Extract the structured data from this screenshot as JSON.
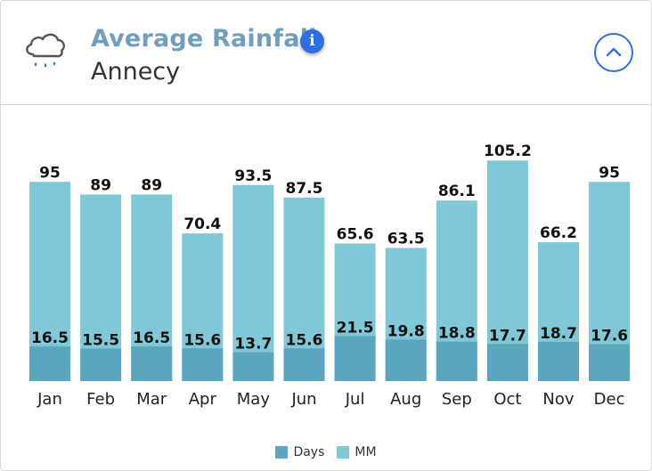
{
  "header": {
    "title": "Average Rainfall",
    "subtitle": "Annecy",
    "weather_icon": "rain-cloud-icon",
    "info_icon": "info-icon",
    "info_label": "i",
    "collapse_icon": "chevron-up-icon"
  },
  "colors": {
    "mm": "#7fc8d8",
    "days": "#5ba6bf",
    "accent": "#2f6fe4",
    "title": "#6e9fc0"
  },
  "chart_data": {
    "type": "bar",
    "stacked_overlay": true,
    "categories": [
      "Jan",
      "Feb",
      "Mar",
      "Apr",
      "May",
      "Jun",
      "Jul",
      "Aug",
      "Sep",
      "Oct",
      "Nov",
      "Dec"
    ],
    "series": [
      {
        "name": "Days",
        "values": [
          16.5,
          15.5,
          16.5,
          15.6,
          13.7,
          15.6,
          21.5,
          19.8,
          18.8,
          17.7,
          18.7,
          17.6
        ]
      },
      {
        "name": "MM",
        "values": [
          95,
          89,
          89,
          70.4,
          93.5,
          87.5,
          65.6,
          63.5,
          86.1,
          105.2,
          66.2,
          95
        ]
      }
    ],
    "value_labels": {
      "Days": [
        "16.5",
        "15.5",
        "16.5",
        "15.6",
        "13.7",
        "15.6",
        "21.5",
        "19.8",
        "18.8",
        "17.7",
        "18.7",
        "17.6"
      ],
      "MM": [
        "95",
        "89",
        "89",
        "70.4",
        "93.5",
        "87.5",
        "65.6",
        "63.5",
        "86.1",
        "105.2",
        "66.2",
        "95"
      ]
    },
    "ylim": [
      0,
      107
    ],
    "grid": false,
    "legend": [
      "Days",
      "MM"
    ],
    "legend_position": "bottom-center"
  }
}
